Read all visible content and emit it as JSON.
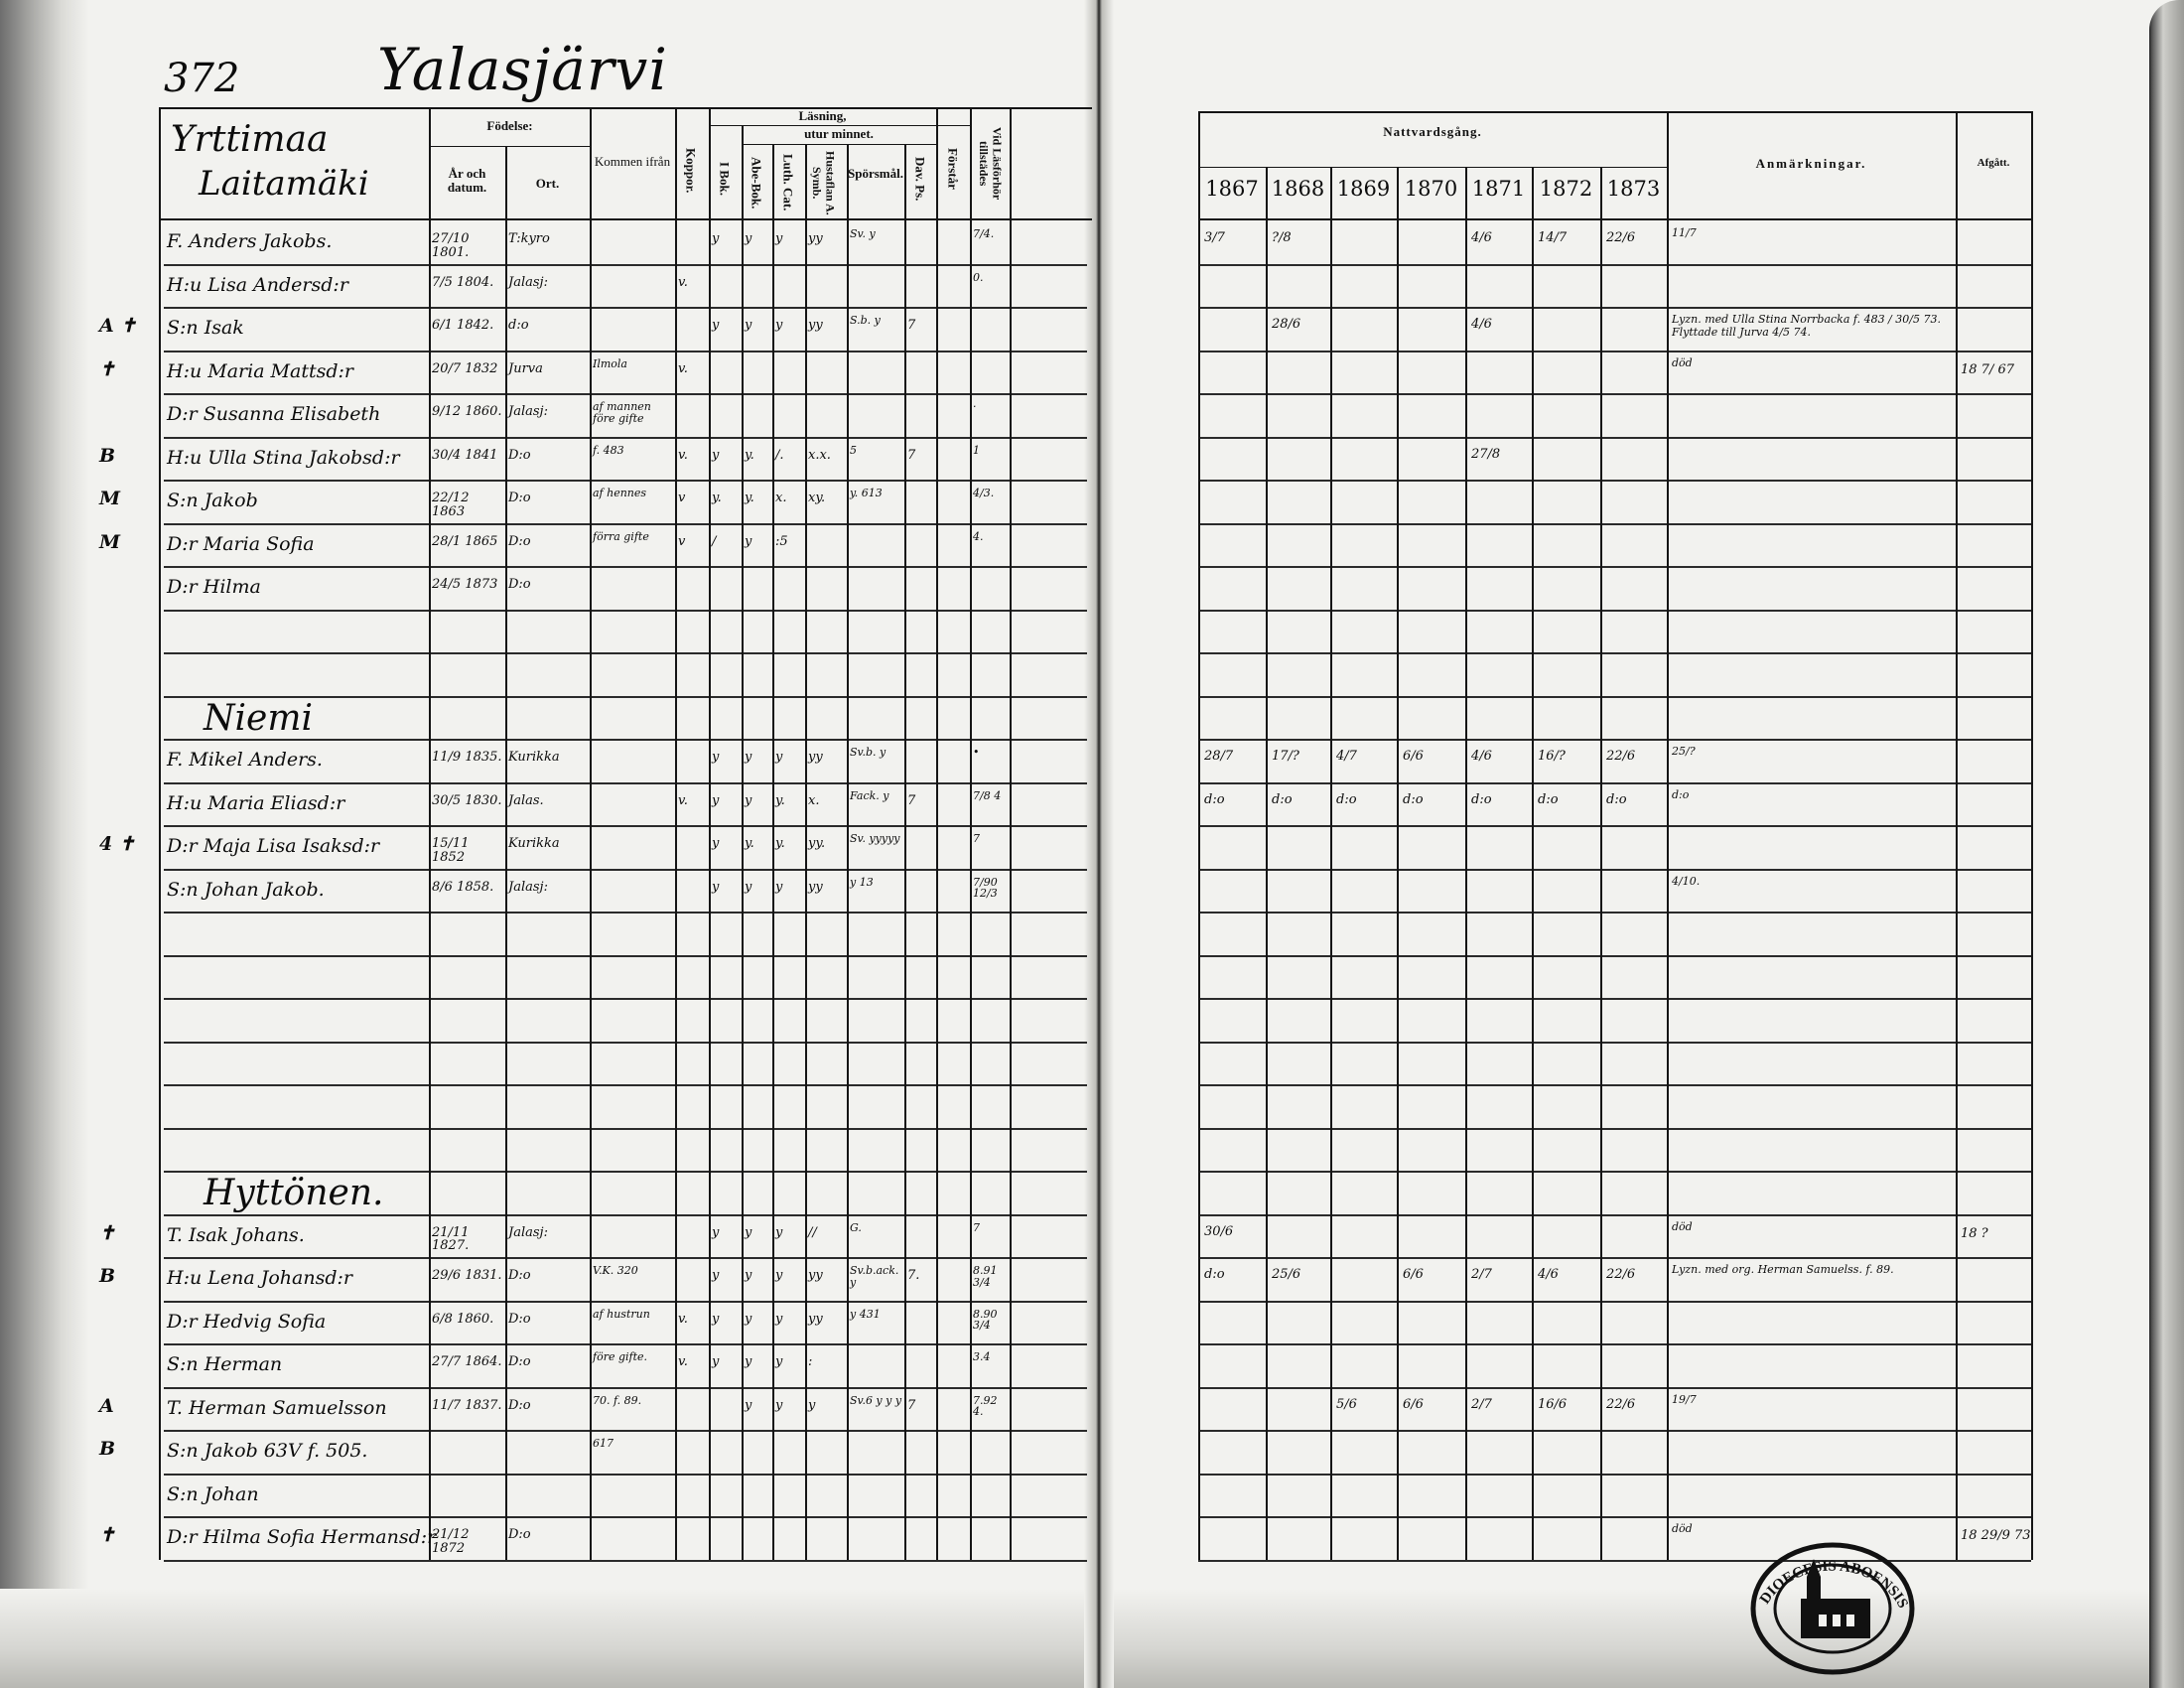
{
  "page_number": "372",
  "place": "Yalasjärvi",
  "left_header": {
    "farm_title_1": "Yrttimaa",
    "farm_title_2": "Laitamäki",
    "birth": "Födelse:",
    "year_date": "År och datum.",
    "place": "Ort.",
    "came_from": "Kommen ifrån",
    "smallpox": "Koppor.",
    "reading": "Läsning,",
    "by_heart": "utur minnet.",
    "in_book": "I Bok.",
    "abc_book": "Abe-Bok.",
    "luth_cat": "Luth. Cat.",
    "hustaflan": "Hustaflan A. Symb.",
    "questions": "Spörsmål.",
    "dav_ps": "Dav. Ps.",
    "understands": "Förstår",
    "at_exam": "Vid Läsförhör tillstädes"
  },
  "right_header": {
    "communion": "Nattvardsgång.",
    "years": [
      "1867",
      "1868",
      "1869",
      "1870",
      "1871",
      "1872",
      "1873"
    ],
    "remarks": "Anmärkningar.",
    "departed": "Afgått."
  },
  "sections": [
    {
      "row": 11,
      "title": "Niemi"
    },
    {
      "row": 22,
      "title": "Hyttönen."
    }
  ],
  "rows": [
    {
      "row": 0,
      "margin": "",
      "name": "F. Anders Jakobs.",
      "birth": "27/10 1801.",
      "place": "T:kyro",
      "from": "",
      "koppor": "",
      "ibok": "y",
      "abe": "y",
      "luth": "y",
      "hust": "yy",
      "spors": "Sv. y",
      "dav": "",
      "forstar": "",
      "lasf": "7/4.",
      "years": [
        "3/7",
        "?/8",
        "",
        "",
        "4/6",
        "14/7",
        "22/6"
      ],
      "remarks": "11/7",
      "departed": ""
    },
    {
      "row": 1,
      "margin": "",
      "name": "H:u Lisa Andersd:r",
      "birth": "7/5 1804.",
      "place": "Jalasj:",
      "from": "",
      "koppor": "v.",
      "ibok": "",
      "abe": "",
      "luth": "",
      "hust": "",
      "spors": "",
      "dav": "",
      "forstar": "",
      "lasf": "0.",
      "years": [
        "",
        "",
        "",
        "",
        "",
        "",
        ""
      ],
      "remarks": "",
      "departed": ""
    },
    {
      "row": 2,
      "margin": "A ✝",
      "name": "S:n Isak",
      "birth": "6/1 1842.",
      "place": "d:o",
      "from": "",
      "koppor": "",
      "ibok": "y",
      "abe": "y",
      "luth": "y",
      "hust": "yy",
      "spors": "S.b. y",
      "dav": "7",
      "forstar": "",
      "lasf": "",
      "years": [
        "",
        "28/6",
        "",
        "",
        "4/6",
        "",
        ""
      ],
      "remarks": "Lyzn. med Ulla Stina Norrbacka f. 483 / 30/5 73. Flyttade till Jurva 4/5 74.",
      "departed": ""
    },
    {
      "row": 3,
      "margin": "✝",
      "name": "H:u Maria Mattsd:r",
      "birth": "20/7 1832",
      "place": "Jurva",
      "from": "Ilmola",
      "koppor": "v.",
      "ibok": "",
      "abe": "",
      "luth": "",
      "hust": "",
      "spors": "",
      "dav": "",
      "forstar": "",
      "lasf": "",
      "years": [
        "",
        "",
        "",
        "",
        "",
        "",
        ""
      ],
      "remarks": "död",
      "departed": "18 7/ 67"
    },
    {
      "row": 4,
      "margin": "",
      "name": "D:r Susanna Elisabeth",
      "birth": "9/12 1860.",
      "place": "Jalasj:",
      "from": "af mannen före gifte",
      "koppor": "",
      "ibok": "",
      "abe": "",
      "luth": "",
      "hust": "",
      "spors": "",
      "dav": "",
      "forstar": "",
      "lasf": "·",
      "years": [
        "",
        "",
        "",
        "",
        "",
        "",
        ""
      ],
      "remarks": "",
      "departed": ""
    },
    {
      "row": 5,
      "margin": "B",
      "name": "H:u Ulla Stina Jakobsd:r",
      "birth": "30/4 1841",
      "place": "D:o",
      "from": "f. 483",
      "koppor": "v.",
      "ibok": "y",
      "abe": "y.",
      "luth": "/.",
      "hust": "x.x.",
      "spors": "5",
      "dav": "7",
      "forstar": "",
      "lasf": "1",
      "years": [
        "",
        "",
        "",
        "",
        "27/8",
        "",
        ""
      ],
      "remarks": "",
      "departed": ""
    },
    {
      "row": 6,
      "margin": "M",
      "name": "S:n Jakob",
      "birth": "22/12 1863",
      "place": "D:o",
      "from": "af hennes",
      "koppor": "v",
      "ibok": "y.",
      "abe": "y.",
      "luth": "x.",
      "hust": "xy.",
      "spors": "y. 613",
      "dav": "",
      "forstar": "",
      "lasf": "4/3.",
      "years": [
        "",
        "",
        "",
        "",
        "",
        "",
        ""
      ],
      "remarks": "",
      "departed": ""
    },
    {
      "row": 7,
      "margin": "M",
      "name": "D:r Maria Sofia",
      "birth": "28/1 1865",
      "place": "D:o",
      "from": "förra gifte",
      "koppor": "v",
      "ibok": "/",
      "abe": "y",
      "luth": ":5",
      "hust": "",
      "spors": "",
      "dav": "",
      "forstar": "",
      "lasf": "4.",
      "years": [
        "",
        "",
        "",
        "",
        "",
        "",
        ""
      ],
      "remarks": "",
      "departed": ""
    },
    {
      "row": 8,
      "margin": "",
      "name": "D:r Hilma",
      "birth": "24/5 1873",
      "place": "D:o",
      "from": "",
      "koppor": "",
      "ibok": "",
      "abe": "",
      "luth": "",
      "hust": "",
      "spors": "",
      "dav": "",
      "forstar": "",
      "lasf": "",
      "years": [
        "",
        "",
        "",
        "",
        "",
        "",
        ""
      ],
      "remarks": "",
      "departed": ""
    },
    {
      "row": 12,
      "margin": "",
      "name": "F. Mikel Anders.",
      "birth": "11/9 1835.",
      "place": "Kurikka",
      "from": "",
      "koppor": "",
      "ibok": "y",
      "abe": "y",
      "luth": "y",
      "hust": "yy",
      "spors": "Sv.b. y",
      "dav": "",
      "forstar": "",
      "lasf": "•",
      "years": [
        "28/7",
        "17/?",
        "4/7",
        "6/6",
        "4/6",
        "16/?",
        "22/6"
      ],
      "remarks": "25/?",
      "departed": ""
    },
    {
      "row": 13,
      "margin": "",
      "name": "H:u Maria Eliasd:r",
      "birth": "30/5 1830.",
      "place": "Jalas.",
      "from": "",
      "koppor": "v.",
      "ibok": "y",
      "abe": "y",
      "luth": "y.",
      "hust": "x.",
      "spors": "Fack. y",
      "dav": "7",
      "forstar": "",
      "lasf": "7/8 4",
      "years": [
        "d:o",
        "d:o",
        "d:o",
        "d:o",
        "d:o",
        "d:o",
        "d:o"
      ],
      "remarks": "d:o",
      "departed": ""
    },
    {
      "row": 14,
      "margin": "4 ✝",
      "name": "D:r Maja Lisa Isaksd:r",
      "birth": "15/11 1852",
      "place": "Kurikka",
      "from": "",
      "koppor": "",
      "ibok": "y",
      "abe": "y.",
      "luth": "y.",
      "hust": "yy.",
      "spors": "Sv. yyyyy",
      "dav": "",
      "forstar": "",
      "lasf": "7",
      "years": [
        "",
        "",
        "",
        "",
        "",
        "",
        ""
      ],
      "remarks": "",
      "departed": ""
    },
    {
      "row": 15,
      "margin": "",
      "name": "S:n Johan Jakob.",
      "birth": "8/6 1858.",
      "place": "Jalasj:",
      "from": "",
      "koppor": "",
      "ibok": "y",
      "abe": "y",
      "luth": "y",
      "hust": "yy",
      "spors": "y 13",
      "dav": "",
      "forstar": "",
      "lasf": "7/90 12/3",
      "years": [
        "",
        "",
        "",
        "",
        "",
        "",
        ""
      ],
      "remarks": "4/10.",
      "departed": ""
    },
    {
      "row": 23,
      "margin": "✝",
      "name": "T. Isak Johans.",
      "birth": "21/11 1827.",
      "place": "Jalasj:",
      "from": "",
      "koppor": "",
      "ibok": "y",
      "abe": "y",
      "luth": "y",
      "hust": "//",
      "spors": "G.",
      "dav": "",
      "forstar": "",
      "lasf": "7",
      "years": [
        "30/6",
        "",
        "",
        "",
        "",
        "",
        ""
      ],
      "remarks": "död",
      "departed": "18 ?"
    },
    {
      "row": 24,
      "margin": "B",
      "name": "H:u Lena Johansd:r",
      "birth": "29/6 1831.",
      "place": "D:o",
      "from": "V.K. 320",
      "koppor": "",
      "ibok": "y",
      "abe": "y",
      "luth": "y",
      "hust": "yy",
      "spors": "Sv.b.ack. y",
      "dav": "7.",
      "forstar": "",
      "lasf": "8.91 3/4",
      "years": [
        "d:o",
        "25/6",
        "",
        "6/6",
        "2/7",
        "4/6",
        "22/6"
      ],
      "remarks": "Lyzn. med org. Herman Samuelss. f. 89.",
      "departed": ""
    },
    {
      "row": 25,
      "margin": "",
      "name": "D:r Hedvig Sofia",
      "birth": "6/8 1860.",
      "place": "D:o",
      "from": "af hustrun",
      "koppor": "v.",
      "ibok": "y",
      "abe": "y",
      "luth": "y",
      "hust": "yy",
      "spors": "y 431",
      "dav": "",
      "forstar": "",
      "lasf": "8.90 3/4",
      "years": [
        "",
        "",
        "",
        "",
        "",
        "",
        ""
      ],
      "remarks": "",
      "departed": ""
    },
    {
      "row": 26,
      "margin": "",
      "name": "S:n Herman",
      "birth": "27/7 1864.",
      "place": "D:o",
      "from": "före gifte.",
      "koppor": "v.",
      "ibok": "y",
      "abe": "y",
      "luth": "y",
      "hust": ":",
      "spors": "",
      "dav": "",
      "forstar": "",
      "lasf": "3.4",
      "years": [
        "",
        "",
        "",
        "",
        "",
        "",
        ""
      ],
      "remarks": "",
      "departed": ""
    },
    {
      "row": 27,
      "margin": "A",
      "name": "T. Herman Samuelsson",
      "birth": "11/7 1837.",
      "place": "D:o",
      "from": "70. f. 89.",
      "koppor": "",
      "ibok": "",
      "abe": "y",
      "luth": "y",
      "hust": "y",
      "spors": "Sv.6 y y y",
      "dav": "7",
      "forstar": "",
      "lasf": "7.92 4.",
      "years": [
        "",
        "",
        "5/6",
        "6/6",
        "2/7",
        "16/6",
        "22/6"
      ],
      "remarks": "19/7",
      "departed": ""
    },
    {
      "row": 28,
      "margin": "B",
      "name": "S:n Jakob 63V f. 505.",
      "birth": "",
      "place": "",
      "from": "617",
      "koppor": "",
      "ibok": "",
      "abe": "",
      "luth": "",
      "hust": "",
      "spors": "",
      "dav": "",
      "forstar": "",
      "lasf": "",
      "years": [
        "",
        "",
        "",
        "",
        "",
        "",
        ""
      ],
      "remarks": "",
      "departed": ""
    },
    {
      "row": 29,
      "margin": "",
      "name": "S:n Johan",
      "birth": "",
      "place": "",
      "from": "",
      "koppor": "",
      "ibok": "",
      "abe": "",
      "luth": "",
      "hust": "",
      "spors": "",
      "dav": "",
      "forstar": "",
      "lasf": "",
      "years": [
        "",
        "",
        "",
        "",
        "",
        "",
        ""
      ],
      "remarks": "",
      "departed": ""
    },
    {
      "row": 30,
      "margin": "✝",
      "name": "D:r Hilma Sofia Hermansd:r",
      "birth": "21/12 1872",
      "place": "D:o",
      "from": "",
      "koppor": "",
      "ibok": "",
      "abe": "",
      "luth": "",
      "hust": "",
      "spors": "",
      "dav": "",
      "forstar": "",
      "lasf": "",
      "years": [
        "",
        "",
        "",
        "",
        "",
        "",
        ""
      ],
      "remarks": "död",
      "departed": "18 29/9 73"
    }
  ],
  "stamp": {
    "text": "DIOECESIS ABOENSIS"
  }
}
